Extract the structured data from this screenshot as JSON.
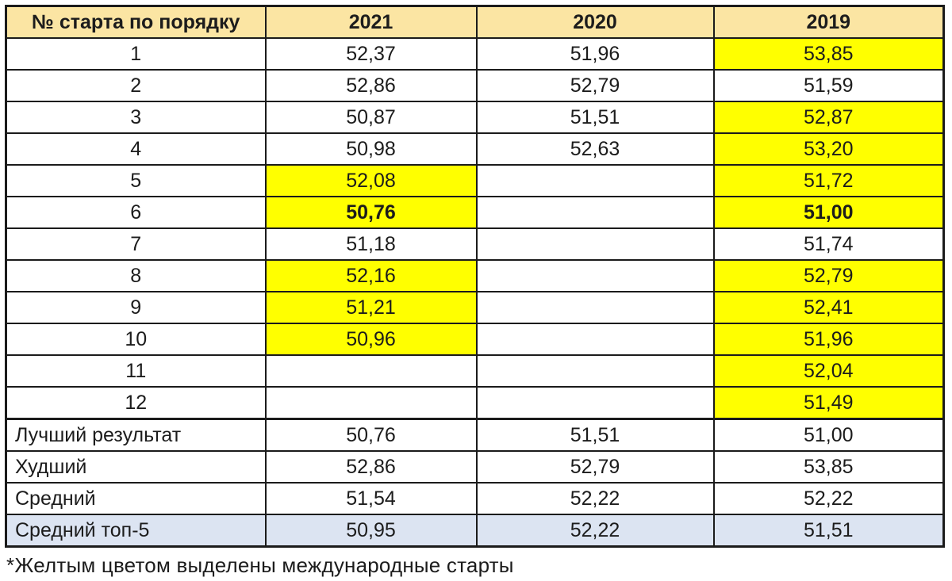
{
  "colors": {
    "header_bg": "#fbe5a3",
    "highlight_yellow": "#ffff00",
    "summary_blue": "#dce4f2",
    "border": "#1b1b1b",
    "text": "#1c1c1c"
  },
  "table": {
    "headers": [
      "№ старта по порядку",
      "2021",
      "2020",
      "2019"
    ],
    "rows": [
      {
        "num": "1",
        "cells": [
          {
            "v": "52,37"
          },
          {
            "v": "51,96"
          },
          {
            "v": "53,85",
            "yellow": true
          }
        ]
      },
      {
        "num": "2",
        "cells": [
          {
            "v": "52,86"
          },
          {
            "v": "52,79"
          },
          {
            "v": "51,59"
          }
        ]
      },
      {
        "num": "3",
        "cells": [
          {
            "v": "50,87"
          },
          {
            "v": "51,51"
          },
          {
            "v": "52,87",
            "yellow": true
          }
        ]
      },
      {
        "num": "4",
        "cells": [
          {
            "v": "50,98"
          },
          {
            "v": "52,63"
          },
          {
            "v": "53,20",
            "yellow": true
          }
        ]
      },
      {
        "num": "5",
        "cells": [
          {
            "v": "52,08",
            "yellow": true
          },
          {
            "v": ""
          },
          {
            "v": "51,72",
            "yellow": true
          }
        ]
      },
      {
        "num": "6",
        "cells": [
          {
            "v": "50,76",
            "yellow": true,
            "bold": true
          },
          {
            "v": ""
          },
          {
            "v": "51,00",
            "yellow": true,
            "bold": true
          }
        ]
      },
      {
        "num": "7",
        "cells": [
          {
            "v": "51,18"
          },
          {
            "v": ""
          },
          {
            "v": "51,74"
          }
        ]
      },
      {
        "num": "8",
        "cells": [
          {
            "v": "52,16",
            "yellow": true
          },
          {
            "v": ""
          },
          {
            "v": "52,79",
            "yellow": true
          }
        ]
      },
      {
        "num": "9",
        "cells": [
          {
            "v": "51,21",
            "yellow": true
          },
          {
            "v": ""
          },
          {
            "v": "52,41",
            "yellow": true
          }
        ]
      },
      {
        "num": "10",
        "cells": [
          {
            "v": "50,96",
            "yellow": true
          },
          {
            "v": ""
          },
          {
            "v": "51,96",
            "yellow": true
          }
        ]
      },
      {
        "num": "11",
        "cells": [
          {
            "v": ""
          },
          {
            "v": ""
          },
          {
            "v": "52,04",
            "yellow": true
          }
        ]
      },
      {
        "num": "12",
        "cells": [
          {
            "v": ""
          },
          {
            "v": ""
          },
          {
            "v": "51,49",
            "yellow": true
          }
        ]
      }
    ],
    "summary": [
      {
        "label": "Лучший результат",
        "cells": [
          {
            "v": "50,76"
          },
          {
            "v": "51,51"
          },
          {
            "v": "51,00"
          }
        ]
      },
      {
        "label": "Худший",
        "cells": [
          {
            "v": "52,86"
          },
          {
            "v": "52,79"
          },
          {
            "v": "53,85"
          }
        ]
      },
      {
        "label": "Средний",
        "cells": [
          {
            "v": "51,54"
          },
          {
            "v": "52,22"
          },
          {
            "v": "52,22"
          }
        ]
      },
      {
        "label": "Средний топ-5",
        "cells": [
          {
            "v": "50,95"
          },
          {
            "v": "52,22"
          },
          {
            "v": "51,51"
          }
        ],
        "blue": true
      }
    ]
  },
  "footnote": "*Желтым цветом выделены международные старты",
  "chart_data": {
    "type": "table",
    "title": "",
    "columns": [
      "№ старта по порядку",
      "2021",
      "2020",
      "2019"
    ],
    "rows": [
      [
        "1",
        52.37,
        51.96,
        53.85
      ],
      [
        "2",
        52.86,
        52.79,
        51.59
      ],
      [
        "3",
        50.87,
        51.51,
        52.87
      ],
      [
        "4",
        50.98,
        52.63,
        53.2
      ],
      [
        "5",
        52.08,
        null,
        51.72
      ],
      [
        "6",
        50.76,
        null,
        51.0
      ],
      [
        "7",
        51.18,
        null,
        51.74
      ],
      [
        "8",
        52.16,
        null,
        52.79
      ],
      [
        "9",
        51.21,
        null,
        52.41
      ],
      [
        "10",
        50.96,
        null,
        51.96
      ],
      [
        "11",
        null,
        null,
        52.04
      ],
      [
        "12",
        null,
        null,
        51.49
      ],
      [
        "Лучший результат",
        50.76,
        51.51,
        51.0
      ],
      [
        "Худший",
        52.86,
        52.79,
        53.85
      ],
      [
        "Средний",
        51.54,
        52.22,
        52.22
      ],
      [
        "Средний топ-5",
        50.95,
        52.22,
        51.51
      ]
    ],
    "yellow_highlighted_cells_meaning": "международные старты",
    "yellow_cells": {
      "2021": [
        "5",
        "6",
        "8",
        "9",
        "10"
      ],
      "2019": [
        "1",
        "3",
        "4",
        "5",
        "6",
        "8",
        "9",
        "10",
        "11",
        "12"
      ]
    },
    "bold_cells": [
      [
        "6",
        "2021"
      ],
      [
        "6",
        "2019"
      ]
    ],
    "blue_row": "Средний топ-5"
  }
}
